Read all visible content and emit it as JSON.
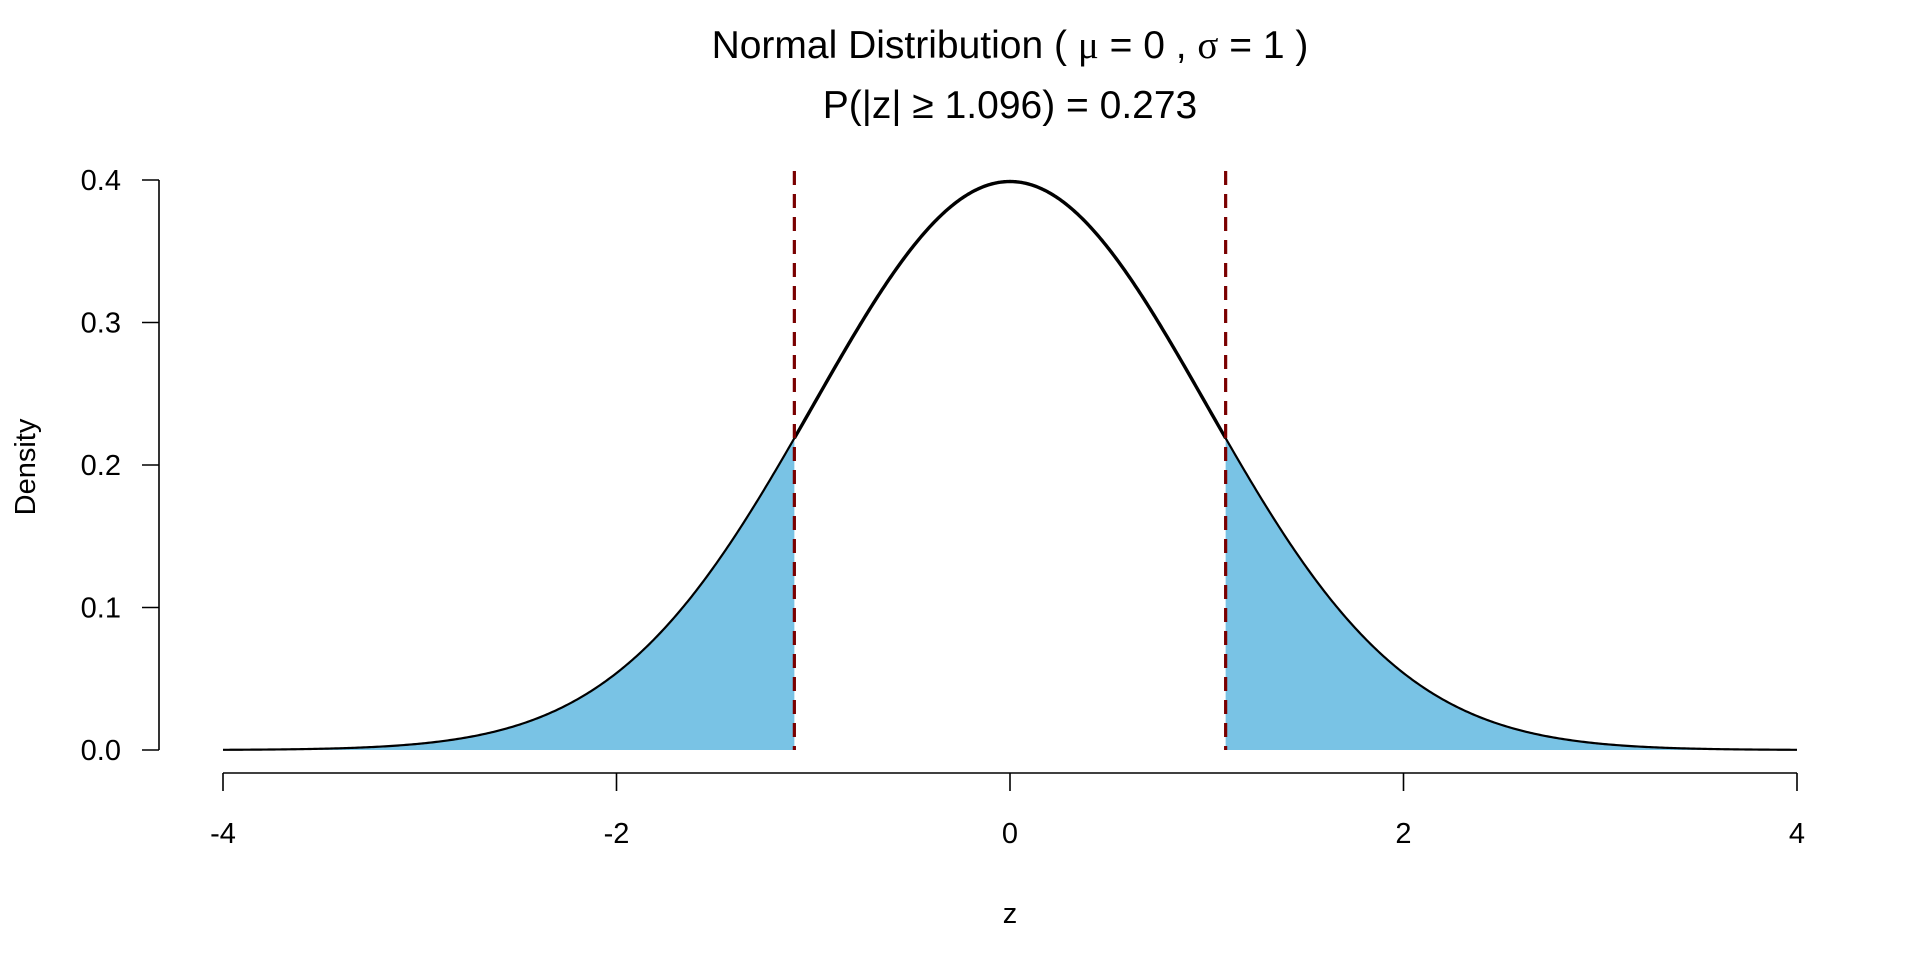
{
  "chart_data": {
    "type": "area",
    "title_parts": {
      "prefix": "Normal Distribution ( ",
      "mu_symbol": "μ",
      "mu_text": " = 0 , ",
      "sigma_symbol": "σ",
      "sigma_text": " = 1 )"
    },
    "subtitle": "P(|z| ≥ 1.096) = 0.273",
    "xlabel": "z",
    "ylabel": "Density",
    "xlim": [
      -4,
      4
    ],
    "ylim": [
      0,
      0.4
    ],
    "x_ticks": [
      -4,
      -2,
      0,
      2,
      4
    ],
    "x_tick_labels": [
      "-4",
      "-2",
      "0",
      "2",
      "4"
    ],
    "y_ticks": [
      0,
      0.1,
      0.2,
      0.3,
      0.4
    ],
    "y_tick_labels": [
      "0.0",
      "0.1",
      "0.2",
      "0.3",
      "0.4"
    ],
    "distribution": {
      "mean": 0,
      "sd": 1
    },
    "critical_values": [
      -1.096,
      1.096
    ],
    "tail_probability": 0.273,
    "series": [
      {
        "role": "density-curve",
        "color": "#000000"
      },
      {
        "role": "shaded-tails",
        "color": "#79c3e5"
      },
      {
        "role": "critical-lines",
        "color": "#7a0000",
        "style": "dashed"
      }
    ]
  }
}
